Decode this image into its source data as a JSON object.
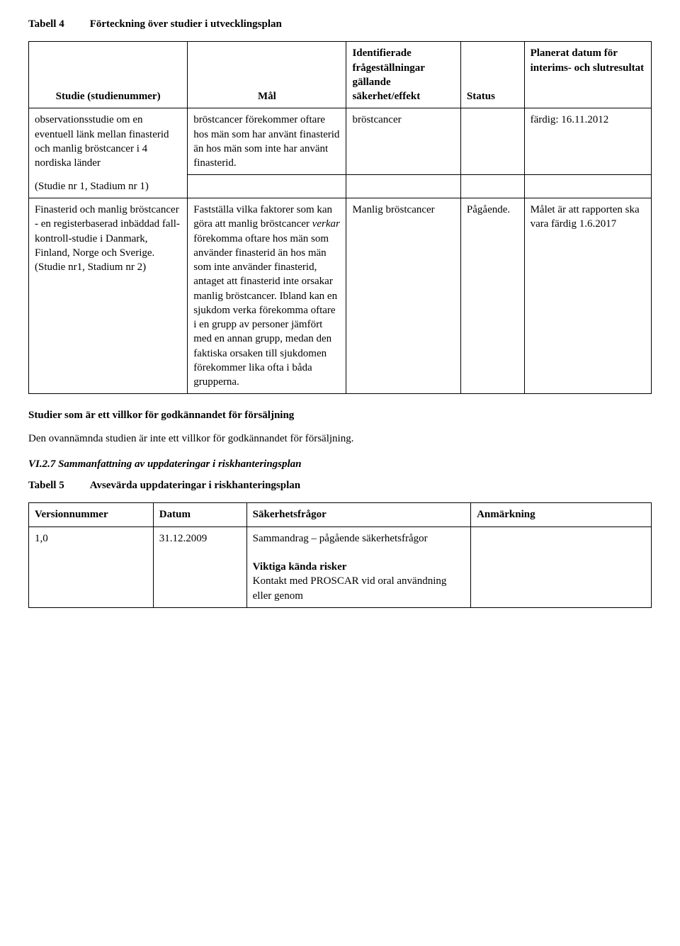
{
  "tabell4": {
    "label": "Tabell 4",
    "title": "Förteckning över studier i utvecklingsplan",
    "headers": {
      "c1": "Studie (studienummer)",
      "c2": "Mål",
      "c3": "Identifierade frågeställningar gällande säkerhet/effekt",
      "c4": "Status",
      "c5": "Planerat datum för interims- och slutresultat"
    },
    "row1": {
      "c1": "observationsstudie om en eventuell länk mellan finasterid och manlig bröstcancer i 4 nordiska länder",
      "c2": "bröstcancer förekommer oftare hos män som har använt finasterid än hos män som inte har använt finasterid.",
      "c3": "bröstcancer",
      "c4": "",
      "c5": "färdig: 16.11.2012"
    },
    "row2": {
      "c1": "(Studie nr 1, Stadium nr 1)"
    },
    "row3": {
      "c1a": "Finasterid och manlig bröstcancer - en registerbaserad inbäddad fall-kontroll-studie i Danmark, Finland, Norge och Sverige.",
      "c1b": " (Studie nr1, Stadium nr 2)",
      "c2a": "Fastställa vilka faktorer som kan göra att manlig bröstcancer ",
      "c2b": "verkar",
      "c2c": " förekomma oftare hos män som använder finasterid än hos män som inte använder finasterid, antaget att finasterid inte orsakar manlig bröstcancer. Ibland kan en sjukdom verka förekomma oftare i en grupp av personer jämfört med en annan grupp, medan den faktiska orsaken till sjukdomen förekommer lika ofta i båda grupperna.",
      "c3": "Manlig bröstcancer",
      "c4": "Pågående.",
      "c5": "Målet är att rapporten ska vara färdig 1.6.2017"
    }
  },
  "villkor_heading": "Studier som är ett villkor för godkännandet för försäljning",
  "villkor_text": "Den ovannämnda studien är inte ett villkor för godkännandet för försäljning.",
  "section_vi27": "VI.2.7 Sammanfattning av uppdateringar i riskhanteringsplan",
  "tabell5": {
    "label": "Tabell 5",
    "title": "Avsevärda uppdateringar i riskhanteringsplan",
    "headers": {
      "c1": "Versionnummer",
      "c2": "Datum",
      "c3": "Säkerhetsfrågor",
      "c4": "Anmärkning"
    },
    "row1": {
      "c1": "1,0",
      "c2": "31.12.2009",
      "c3a": "Sammandrag – pågående säkerhetsfrågor",
      "c3b_head": "Viktiga kända risker",
      "c3b_body": "Kontakt med PROSCAR vid oral användning eller genom"
    }
  }
}
